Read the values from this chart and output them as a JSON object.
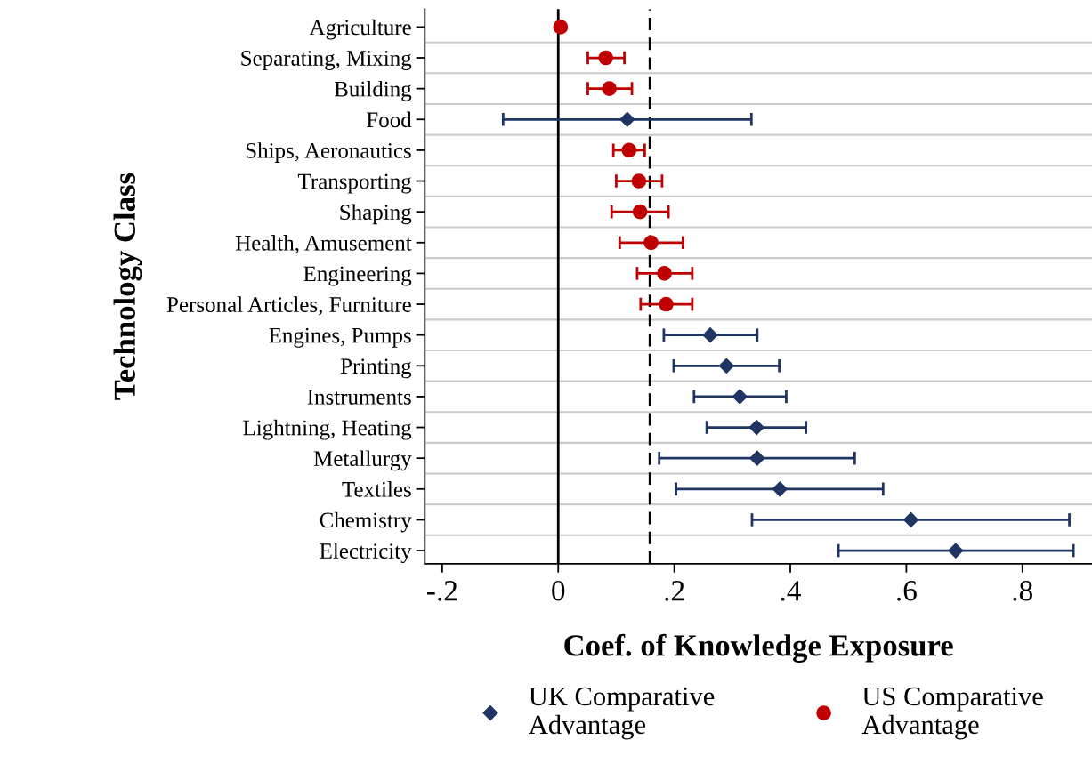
{
  "chart_data": {
    "type": "scatter",
    "orientation": "horizontal",
    "xlabel": "Coef. of Knowledge Exposure",
    "ylabel": "Technology Class",
    "categories": [
      "Agriculture",
      "Separating, Mixing",
      "Building",
      "Food",
      "Ships, Aeronautics",
      "Transporting",
      "Shaping",
      "Health, Amusement",
      "Engineering",
      "Personal Articles, Furniture",
      "Engines, Pumps",
      "Printing",
      "Instruments",
      "Lightning, Heating",
      "Metallurgy",
      "Textiles",
      "Chemistry",
      "Electricity"
    ],
    "series": [
      {
        "name": "UK Comparative Advantage",
        "color": "#1f3564",
        "marker": "diamond",
        "values": [
          null,
          null,
          null,
          0.119,
          null,
          null,
          null,
          null,
          null,
          null,
          0.262,
          0.29,
          0.313,
          0.342,
          0.343,
          0.382,
          0.608,
          0.685
        ],
        "errors": [
          null,
          null,
          null,
          [
            -0.095,
            0.333
          ],
          null,
          null,
          null,
          null,
          null,
          null,
          [
            0.182,
            0.343
          ],
          [
            0.199,
            0.381
          ],
          [
            0.234,
            0.393
          ],
          [
            0.256,
            0.427
          ],
          [
            0.174,
            0.511
          ],
          [
            0.203,
            0.56
          ],
          [
            0.334,
            0.881
          ],
          [
            0.483,
            0.888
          ]
        ]
      },
      {
        "name": "US Comparative Advantage",
        "color": "#c00000",
        "marker": "circle",
        "values": [
          0.004,
          0.082,
          0.088,
          null,
          0.122,
          0.139,
          0.141,
          0.16,
          0.183,
          0.186,
          null,
          null,
          null,
          null,
          null,
          null,
          null,
          null
        ],
        "errors": [
          null,
          [
            0.051,
            0.114
          ],
          [
            0.051,
            0.127
          ],
          null,
          [
            0.095,
            0.149
          ],
          [
            0.1,
            0.179
          ],
          [
            0.092,
            0.19
          ],
          [
            0.106,
            0.215
          ],
          [
            0.136,
            0.231
          ],
          [
            0.142,
            0.231
          ],
          null,
          null,
          null,
          null,
          null,
          null,
          null,
          null
        ]
      }
    ],
    "xlim": [
      -0.23,
      0.92
    ],
    "xticks": [
      {
        "value": -0.2,
        "label": "-.2"
      },
      0,
      {
        "value": 0.2,
        "label": ".2"
      },
      {
        "value": 0.4,
        "label": ".4"
      },
      {
        "value": 0.6,
        "label": ".6"
      },
      {
        "value": 0.8,
        "label": ".8"
      }
    ],
    "ref_lines": [
      {
        "axis": "x",
        "value": 0,
        "color": "#000000",
        "line_style": "solid"
      },
      {
        "axis": "x",
        "value": 0.158,
        "color": "#000000",
        "line_style": "dashed"
      }
    ],
    "grid": "y",
    "legend": "bottom"
  }
}
